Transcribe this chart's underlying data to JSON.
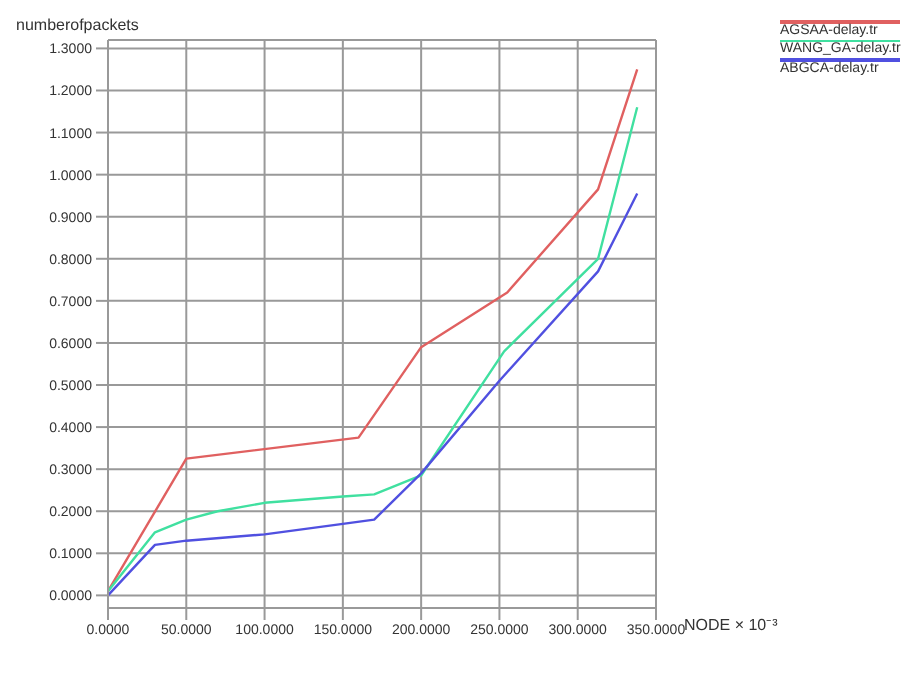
{
  "chart_data": {
    "type": "line",
    "xlabel": "NODE × 10⁻³",
    "ylabel": "numberofpackets",
    "xlim": [
      0,
      350
    ],
    "xticks": [
      {
        "value": 0,
        "label": "0.0000"
      },
      {
        "value": 50,
        "label": "50.0000"
      },
      {
        "value": 100,
        "label": "100.0000"
      },
      {
        "value": 150,
        "label": "150.0000"
      },
      {
        "value": 200,
        "label": "200.0000"
      },
      {
        "value": 250,
        "label": "250.0000"
      },
      {
        "value": 300,
        "label": "300.0000"
      },
      {
        "value": 350,
        "label": "350.0000"
      }
    ],
    "ylim": [
      -0.03,
      1.32
    ],
    "yticks": [
      {
        "value": 0,
        "label": "0.0000"
      },
      {
        "value": 0.1,
        "label": "0.1000"
      },
      {
        "value": 0.2,
        "label": "0.2000"
      },
      {
        "value": 0.3,
        "label": "0.3000"
      },
      {
        "value": 0.4,
        "label": "0.4000"
      },
      {
        "value": 0.5,
        "label": "0.5000"
      },
      {
        "value": 0.6,
        "label": "0.6000"
      },
      {
        "value": 0.7,
        "label": "0.7000"
      },
      {
        "value": 0.8,
        "label": "0.8000"
      },
      {
        "value": 0.9,
        "label": "0.9000"
      },
      {
        "value": 1.0,
        "label": "1.0000"
      },
      {
        "value": 1.1,
        "label": "1.1000"
      },
      {
        "value": 1.2,
        "label": "1.2000"
      },
      {
        "value": 1.3,
        "label": "1.3000"
      }
    ],
    "grid": true,
    "legend": "top right",
    "marker": "none",
    "line_style": "solid",
    "series": [
      {
        "name": "AGSAA-delay.tr",
        "color": "#e06060",
        "x": [
          0,
          50,
          160,
          200,
          255,
          313,
          338
        ],
        "values": [
          0.01,
          0.325,
          0.375,
          0.59,
          0.72,
          0.965,
          1.25
        ]
      },
      {
        "name": "WANG_GA-delay.tr",
        "color": "#40e0a0",
        "x": [
          0,
          30,
          50,
          70,
          100,
          150,
          170,
          200,
          253,
          313,
          338
        ],
        "values": [
          0.01,
          0.15,
          0.18,
          0.2,
          0.22,
          0.235,
          0.24,
          0.285,
          0.58,
          0.8,
          1.16
        ]
      },
      {
        "name": "ABGCA-delay.tr",
        "color": "#5050e0",
        "x": [
          0,
          30,
          50,
          100,
          150,
          170,
          200,
          250,
          313,
          338
        ],
        "values": [
          0,
          0.12,
          0.13,
          0.145,
          0.17,
          0.18,
          0.29,
          0.51,
          0.77,
          0.955
        ]
      }
    ]
  }
}
